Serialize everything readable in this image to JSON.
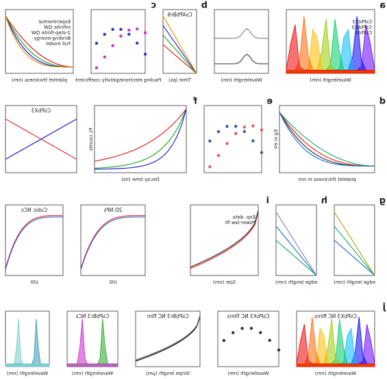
{
  "figure": {
    "panels": [
      {
        "x_label": "platelet thickness (nm)",
        "notes": [
          "Experimental",
          "Infinite QW",
          "2-step-finite QW",
          "Binding-energy",
          "Full model"
        ]
      },
      {
        "letter": "c",
        "x_label": "Pauling electronegativity coefficient"
      },
      {
        "letter": "b",
        "title": "Cs4PbBr6",
        "x_label": "Time (ps)"
      },
      {
        "x_label": "Wavelength (nm)"
      },
      {
        "letter": "a",
        "x_label": "Wavelength (nm)",
        "notes": [
          "CsPbCl3",
          "CsPbBr3",
          "CsPbI3"
        ]
      },
      {
        "title": "CsPbX3"
      },
      {
        "letter": "f",
        "x_label": "Decay time (ns)",
        "y_label": "PL counts"
      },
      {
        "letter": "e"
      },
      {
        "letter": "d",
        "x_label": "platelet thickness in nm",
        "y_label": "Eg in eV"
      },
      {
        "title": "Cubic NCs",
        "x_label": "I/I0"
      },
      {
        "title": "2D NPs",
        "x_label": "I/I0"
      },
      {
        "letter": "i",
        "x_label": "Size (nm)",
        "notes": [
          "Exp. data",
          "Power-law fit"
        ]
      },
      {
        "letter": "h",
        "x_label": "edge length (nm)"
      },
      {
        "letter": "g",
        "x_label": "edge length (nm)"
      },
      {
        "x_label": "Wavelength (nm)"
      },
      {
        "title": "CsPbBr3 NCs",
        "x_label": "Wavelength (nm)"
      },
      {
        "title": "CsPbBr3 NC film",
        "x_label": "Stripe length (µm)"
      },
      {
        "title": "CsPbX3 NC films",
        "x_label": "Wavelength (nm)"
      },
      {
        "letter": "j",
        "title": "CsPbX3 NC films",
        "x_label": "Wavelength (nm)"
      }
    ]
  }
}
